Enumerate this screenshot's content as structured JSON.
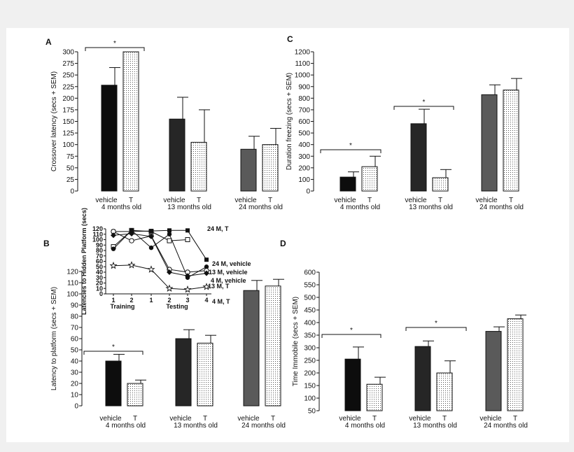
{
  "figure": {
    "inset_legend_extra": [
      "24 M, vehicle"
    ]
  },
  "chart_data": [
    {
      "panel": "A",
      "type": "bar",
      "ylabel": "Crossover latency (secs + SEM)",
      "ylim": [
        0,
        300
      ],
      "yticks": [
        0,
        25,
        50,
        75,
        100,
        125,
        150,
        175,
        200,
        225,
        250,
        275,
        300
      ],
      "groups": [
        {
          "label": "4 months old",
          "bars": [
            {
              "name": "vehicle",
              "value": 228,
              "sem": 38,
              "fill": "black"
            },
            {
              "name": "T",
              "value": 300,
              "sem": 0,
              "fill": "dots"
            }
          ]
        },
        {
          "label": "13 months old",
          "bars": [
            {
              "name": "vehicle",
              "value": 155,
              "sem": 47,
              "fill": "dark"
            },
            {
              "name": "T",
              "value": 105,
              "sem": 70,
              "fill": "dots"
            }
          ]
        },
        {
          "label": "24 months old",
          "bars": [
            {
              "name": "vehicle",
              "value": 90,
              "sem": 28,
              "fill": "gray"
            },
            {
              "name": "T",
              "value": 100,
              "sem": 35,
              "fill": "dots"
            }
          ]
        }
      ],
      "significance": [
        {
          "group": 0,
          "label": "*"
        }
      ]
    },
    {
      "panel": "C",
      "type": "bar",
      "ylabel": "Duration freezing (secs + SEM)",
      "ylim": [
        0,
        1200
      ],
      "yticks": [
        0,
        100,
        200,
        300,
        400,
        500,
        600,
        700,
        800,
        900,
        1000,
        1100,
        1200
      ],
      "groups": [
        {
          "label": "4 months old",
          "bars": [
            {
              "name": "vehicle",
              "value": 120,
              "sem": 45,
              "fill": "black"
            },
            {
              "name": "T",
              "value": 210,
              "sem": 90,
              "fill": "dots"
            }
          ]
        },
        {
          "label": "13 months old",
          "bars": [
            {
              "name": "vehicle",
              "value": 580,
              "sem": 125,
              "fill": "dark"
            },
            {
              "name": "T",
              "value": 115,
              "sem": 70,
              "fill": "dots"
            }
          ]
        },
        {
          "label": "24 months old",
          "bars": [
            {
              "name": "vehicle",
              "value": 830,
              "sem": 85,
              "fill": "gray"
            },
            {
              "name": "T",
              "value": 870,
              "sem": 100,
              "fill": "dots"
            }
          ]
        }
      ],
      "significance": [
        {
          "group": 0,
          "label": "*"
        },
        {
          "group": 1,
          "label": "*"
        }
      ]
    },
    {
      "panel": "B",
      "type": "bar",
      "ylabel": "Latency to platform (secs + SEM)",
      "ylim": [
        0,
        120
      ],
      "yticks": [
        0,
        10,
        20,
        30,
        40,
        50,
        60,
        70,
        80,
        90,
        100,
        110,
        120
      ],
      "groups": [
        {
          "label": "4 months old",
          "bars": [
            {
              "name": "vehicle",
              "value": 40,
              "sem": 6,
              "fill": "black"
            },
            {
              "name": "T",
              "value": 20,
              "sem": 3,
              "fill": "dots"
            }
          ]
        },
        {
          "label": "13 months old",
          "bars": [
            {
              "name": "vehicle",
              "value": 60,
              "sem": 8,
              "fill": "dark"
            },
            {
              "name": "T",
              "value": 56,
              "sem": 7,
              "fill": "dots"
            }
          ]
        },
        {
          "label": "24 months old",
          "bars": [
            {
              "name": "vehicle",
              "value": 103,
              "sem": 9,
              "fill": "gray"
            },
            {
              "name": "T",
              "value": 107,
              "sem": 6,
              "fill": "dots"
            }
          ]
        }
      ],
      "significance": [
        {
          "group": 0,
          "label": "*"
        }
      ]
    },
    {
      "panel": "D",
      "type": "bar",
      "ylabel": "Time Immobile (secs + SEM)",
      "ylim": [
        50,
        600
      ],
      "yticks": [
        50,
        100,
        150,
        200,
        250,
        300,
        350,
        400,
        450,
        500,
        550,
        600
      ],
      "groups": [
        {
          "label": "4 months old",
          "bars": [
            {
              "name": "vehicle",
              "value": 255,
              "sem": 48,
              "fill": "black"
            },
            {
              "name": "T",
              "value": 155,
              "sem": 28,
              "fill": "dots"
            }
          ]
        },
        {
          "label": "13 months old",
          "bars": [
            {
              "name": "vehicle",
              "value": 305,
              "sem": 22,
              "fill": "dark"
            },
            {
              "name": "T",
              "value": 200,
              "sem": 48,
              "fill": "dots"
            }
          ]
        },
        {
          "label": "24 months old",
          "bars": [
            {
              "name": "vehicle",
              "value": 365,
              "sem": 18,
              "fill": "gray"
            },
            {
              "name": "T",
              "value": 415,
              "sem": 15,
              "fill": "dots"
            }
          ]
        }
      ],
      "significance": [
        {
          "group": 0,
          "label": "*"
        },
        {
          "group": 1,
          "label": "*"
        }
      ]
    },
    {
      "panel": "B-inset",
      "type": "line",
      "ylabel": "Latencies to Hidden Platform (secs)",
      "ylim": [
        0,
        120
      ],
      "yticks": [
        0,
        10,
        20,
        30,
        40,
        50,
        60,
        70,
        80,
        90,
        100,
        110,
        120
      ],
      "x": [
        "1",
        "2",
        "1",
        "2",
        "3",
        "4"
      ],
      "phases": [
        "Training",
        "Testing"
      ],
      "series": [
        {
          "name": "24 M, T",
          "marker": "open-square",
          "values": [
            87,
            117,
            115,
            98,
            100,
            null
          ]
        },
        {
          "name": "24 M, vehicle",
          "marker": "filled-square",
          "values": [
            115,
            115,
            116,
            117,
            117,
            63
          ]
        },
        {
          "name": "13 M, vehicle",
          "marker": "filled-circle",
          "values": [
            83,
            117,
            85,
            110,
            30,
            50
          ]
        },
        {
          "name": "4 M, vehicle",
          "marker": "open-circle",
          "values": [
            115,
            98,
            107,
            45,
            40,
            43
          ]
        },
        {
          "name": "13 M, T",
          "marker": "filled-diamond",
          "values": [
            108,
            111,
            106,
            40,
            33,
            38
          ]
        },
        {
          "name": "4 M, T",
          "marker": "star",
          "values": [
            52,
            53,
            45,
            10,
            8,
            13
          ]
        }
      ]
    }
  ]
}
